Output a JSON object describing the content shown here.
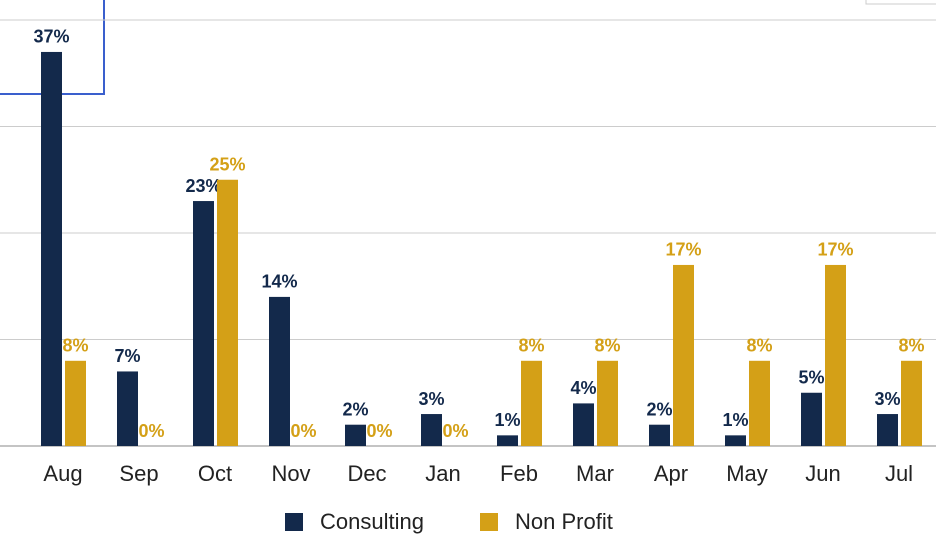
{
  "chart_data": {
    "type": "bar",
    "categories": [
      "Aug",
      "Sep",
      "Oct",
      "Nov",
      "Dec",
      "Jan",
      "Feb",
      "Mar",
      "Apr",
      "May",
      "Jun",
      "Jul"
    ],
    "series": [
      {
        "name": "Consulting",
        "color": "#13294b",
        "values": [
          37,
          7,
          23,
          14,
          2,
          3,
          1,
          4,
          2,
          1,
          5,
          3
        ],
        "value_labels": [
          "37%",
          "7%",
          "23%",
          "14%",
          "2%",
          "3%",
          "1%",
          "4%",
          "2%",
          "1%",
          "5%",
          "3%"
        ]
      },
      {
        "name": "Non Profit",
        "color": "#d4a017",
        "values": [
          8,
          0,
          25,
          0,
          0,
          0,
          8,
          8,
          17,
          8,
          17,
          8
        ],
        "value_labels": [
          "8%",
          "0%",
          "25%",
          "0%",
          "0%",
          "0%",
          "8%",
          "8%",
          "17%",
          "8%",
          "17%",
          "8%"
        ]
      }
    ],
    "ylim": [
      0,
      40
    ],
    "yticks": [
      0,
      10,
      20,
      30,
      40
    ],
    "grid": true
  }
}
